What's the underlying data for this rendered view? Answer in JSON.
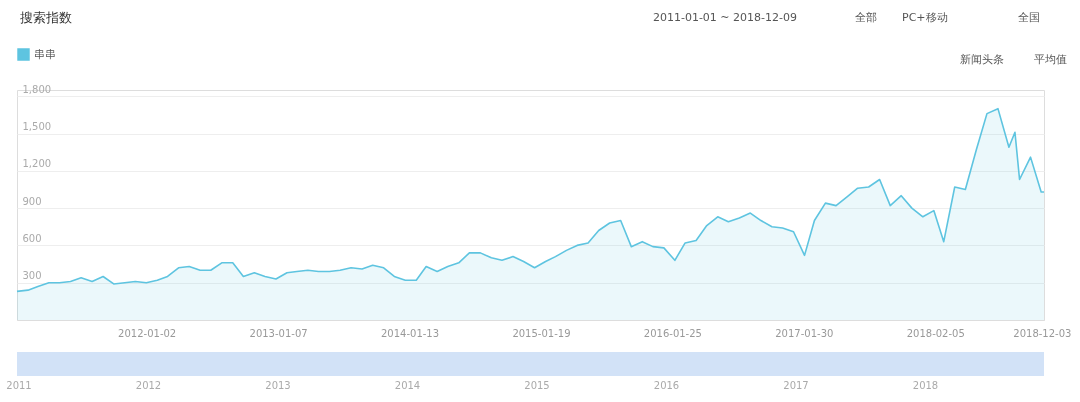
{
  "chart_data": {
    "type": "area",
    "title": "搜索指数",
    "subtitle": "2011-01-01 ~ 2018-12-09",
    "x": [
      "2011-01",
      "2011-02",
      "2011-03",
      "2011-04",
      "2011-05",
      "2011-06",
      "2011-07",
      "2011-08",
      "2011-09",
      "2011-10",
      "2011-11",
      "2011-12",
      "2012-01",
      "2012-02",
      "2012-03",
      "2012-04",
      "2012-05",
      "2012-06",
      "2012-07",
      "2012-08",
      "2012-09",
      "2012-10",
      "2012-11",
      "2012-12",
      "2013-01",
      "2013-02",
      "2013-03",
      "2013-04",
      "2013-05",
      "2013-06",
      "2013-07",
      "2013-08",
      "2013-09",
      "2013-10",
      "2013-11",
      "2013-12",
      "2014-01",
      "2014-02",
      "2014-03",
      "2014-04",
      "2014-05",
      "2014-06",
      "2014-07",
      "2014-08",
      "2014-09",
      "2014-10",
      "2014-11",
      "2014-12",
      "2015-01",
      "2015-02",
      "2015-03",
      "2015-04",
      "2015-05",
      "2015-06",
      "2015-07",
      "2015-08",
      "2015-09",
      "2015-10",
      "2015-11",
      "2015-12",
      "2016-01",
      "2016-02",
      "2016-03",
      "2016-04",
      "2016-05",
      "2016-06",
      "2016-07",
      "2016-08",
      "2016-09",
      "2016-10",
      "2016-11",
      "2016-12",
      "2017-01",
      "2017-02",
      "2017-03",
      "2017-04",
      "2017-05",
      "2017-06",
      "2017-07",
      "2017-08",
      "2017-09",
      "2017-10",
      "2017-11",
      "2017-12",
      "2018-01",
      "2018-02",
      "2018-03",
      "2018-04",
      "2018-05",
      "2018-06",
      "2018-07",
      "2018-08",
      "2018-09",
      "2018-09-18",
      "2018-10",
      "2018-11",
      "2018-12",
      "2018-12-09"
    ],
    "series": [
      {
        "name": "串串",
        "color": "#5ec4e0",
        "values": [
          230,
          240,
          270,
          300,
          300,
          310,
          340,
          310,
          350,
          290,
          300,
          310,
          300,
          320,
          350,
          420,
          430,
          400,
          400,
          460,
          460,
          350,
          380,
          350,
          330,
          380,
          390,
          400,
          390,
          390,
          400,
          420,
          410,
          440,
          420,
          350,
          320,
          320,
          430,
          390,
          430,
          460,
          540,
          540,
          500,
          480,
          510,
          470,
          420,
          470,
          510,
          560,
          600,
          620,
          720,
          780,
          800,
          590,
          630,
          590,
          580,
          480,
          620,
          640,
          760,
          830,
          790,
          820,
          860,
          800,
          750,
          740,
          710,
          520,
          800,
          940,
          920,
          990,
          1060,
          1070,
          1130,
          920,
          1000,
          900,
          830,
          880,
          630,
          1070,
          1050,
          1370,
          1660,
          1700,
          1390,
          1510,
          1130,
          1310,
          1030,
          1030
        ]
      }
    ],
    "xlim": [
      "2011-01-01",
      "2018-12-09"
    ],
    "xticks": [
      "2012-01-02",
      "2013-01-07",
      "2014-01-13",
      "2015-01-19",
      "2016-01-25",
      "2017-01-30",
      "2018-02-05",
      "2018-12-03"
    ],
    "ylim": [
      0,
      1850
    ],
    "yticks": [
      300,
      600,
      900,
      {
        "value": 1200,
        "label": "1,200"
      },
      {
        "value": 1500,
        "label": "1,500"
      },
      {
        "value": 1800,
        "label": "1,800"
      }
    ],
    "grid": "y",
    "legend": "top left",
    "annotations": [
      "全部",
      "PC+移动",
      "全国",
      "新闻头条",
      "平均值",
      "2011",
      "2012",
      "2013",
      "2014",
      "2015",
      "2016",
      "2017",
      "2018"
    ]
  }
}
